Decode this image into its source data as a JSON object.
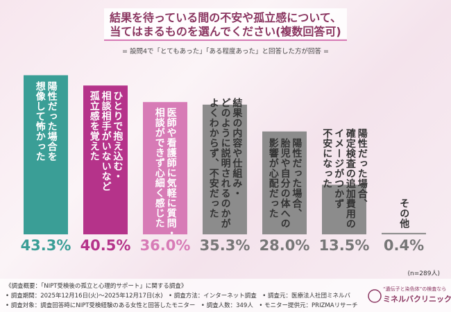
{
  "chart_data": {
    "type": "bar",
    "title_lines": [
      "結果を待っている間の不安や孤立感について、",
      "当てはまるものを選んでください(複数回答可)"
    ],
    "subtitle": "= 設問4で「とてもあった」「ある程度あった」と回答した方が回答 =",
    "categories": [
      "陽性だった場合を\n想像して怖かった",
      "ひとりで抱え込む・\n相談相手がいないなど\n孤立感を覚えた",
      "医師や看護師に気軽に質問・\n相談ができず心細く感じた",
      "結果の内容や仕組み・\nどのように説明されるのかが\nよくわからず、不安だった",
      "陽性だった場合、\n胎児や自分の体への\n影響が心配だった",
      "陽性だった場合、\n確定検査の追加費用の\nイメージがつかず\n不安になった",
      "その他"
    ],
    "values": [
      43.3,
      40.5,
      36.0,
      35.3,
      28.0,
      13.5,
      0.4
    ],
    "value_labels": [
      "43.3%",
      "40.5%",
      "36.0%",
      "35.3%",
      "28.0%",
      "13.5%",
      "0.4%"
    ],
    "colors": [
      "#3a9e96",
      "#b5338a",
      "#d77bb6",
      "#8c8c8c",
      "#8c8c8c",
      "#8c8c8c",
      "#8c8c8c"
    ],
    "label_colors": [
      "#ffffff",
      "#ffffff",
      "#ffffff",
      "#333333",
      "#333333",
      "#333333",
      "#333333"
    ],
    "sample_note": "(n=289人)",
    "footnotes": [
      "《調査概要：「NIPT受検後の孤立と心理的サポート」に関する調査》",
      "• 調査期間：2025年12月16日(火)～2025年12月17日(水)　• 調査方法：インターネット調査　• 調査元：医療法人社団ミネルバ",
      "• 調査対象：調査回答時にNIPT受検経験のある女性と回答したモニター　• 調査人数：349人　• モニター提供元：PRIZMAリサーチ"
    ],
    "logo": {
      "tagline": "“遺伝子と染色体”の検査なら",
      "name": "ミネルバクリニック"
    }
  }
}
